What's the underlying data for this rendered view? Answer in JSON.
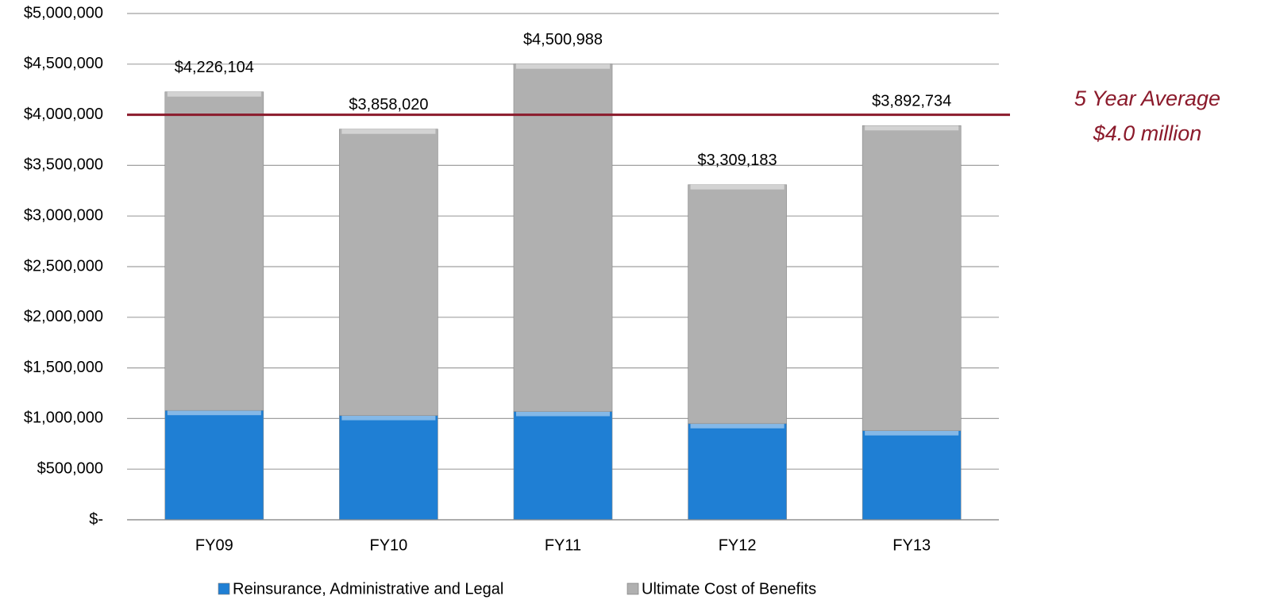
{
  "chart_data": {
    "type": "stacked_bar",
    "categories": [
      "FY09",
      "FY10",
      "FY11",
      "FY12",
      "FY13"
    ],
    "series": [
      {
        "name": "Reinsurance, Administrative and Legal",
        "color": "#1f7fd4",
        "values": [
          1080000,
          1030000,
          1070000,
          950000,
          880000
        ]
      },
      {
        "name": "Ultimate  Cost of Benefits",
        "color": "#b0b0b0",
        "values": [
          3146104,
          2828020,
          3430988,
          2359183,
          3012734
        ]
      }
    ],
    "totals": [
      4226104,
      3858020,
      4500988,
      3309183,
      3892734
    ],
    "total_labels": [
      "$4,226,104",
      "$3,858,020",
      "$4,500,988",
      "$3,309,183",
      "$3,892,734"
    ],
    "ylim": [
      0,
      5000000
    ],
    "yticks": [
      {
        "value": 0,
        "label": "$-"
      },
      {
        "value": 500000,
        "label": "$500,000"
      },
      {
        "value": 1000000,
        "label": "$1,000,000"
      },
      {
        "value": 1500000,
        "label": "$1,500,000"
      },
      {
        "value": 2000000,
        "label": "$2,000,000"
      },
      {
        "value": 2500000,
        "label": "$2,500,000"
      },
      {
        "value": 3000000,
        "label": "$3,000,000"
      },
      {
        "value": 3500000,
        "label": "$3,500,000"
      },
      {
        "value": 4000000,
        "label": "$4,000,000"
      },
      {
        "value": 4500000,
        "label": "$4,500,000"
      },
      {
        "value": 5000000,
        "label": "$5,000,000"
      }
    ],
    "grid": true,
    "legend": "bottom",
    "reference_line": {
      "value": 4000000,
      "color": "#8b1a2b",
      "annotation": [
        "5 Year Average",
        "$4.0 million"
      ]
    }
  }
}
